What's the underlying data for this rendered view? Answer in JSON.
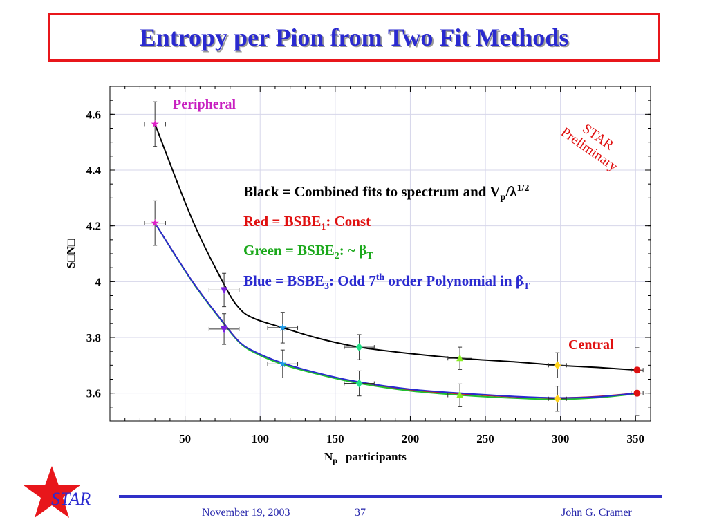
{
  "slide": {
    "title": "Entropy per Pion from Two Fit Methods",
    "title_color": "#2a2ad0",
    "border_color": "#e8161b"
  },
  "chart_data": {
    "type": "scatter",
    "xlabel_main": "N",
    "xlabel_sub": "p",
    "xlabel_rest": "participants",
    "ylabel": "S□N□",
    "xlim": [
      0,
      360
    ],
    "ylim": [
      3.5,
      4.7
    ],
    "x_ticks": [
      50,
      100,
      150,
      200,
      250,
      300,
      350
    ],
    "y_ticks": [
      3.6,
      3.8,
      4,
      4.2,
      4.4,
      4.6
    ],
    "y_tick_labels": [
      "3.6",
      "3.8",
      "4",
      "4.2",
      "4.4",
      "4.6"
    ],
    "grid": true,
    "points_upper": [
      {
        "x": 30,
        "y": 4.565,
        "xerr": 7,
        "yerr": 0.08,
        "marker": "star",
        "color": "#e020c8"
      },
      {
        "x": 76,
        "y": 3.97,
        "xerr": 10,
        "yerr": 0.06,
        "marker": "triangle-down",
        "color": "#7a22e0"
      },
      {
        "x": 115,
        "y": 3.835,
        "xerr": 10,
        "yerr": 0.055,
        "marker": "star",
        "color": "#1e9be8"
      },
      {
        "x": 166,
        "y": 3.765,
        "xerr": 10,
        "yerr": 0.045,
        "marker": "diamond",
        "color": "#22e088"
      },
      {
        "x": 233,
        "y": 3.725,
        "xerr": 8,
        "yerr": 0.04,
        "marker": "triangle-up",
        "color": "#88ee22"
      },
      {
        "x": 298,
        "y": 3.7,
        "xerr": 6,
        "yerr": 0.045,
        "marker": "diamond",
        "color": "#ffd21a"
      },
      {
        "x": 351,
        "y": 3.683,
        "xerr": 4,
        "yerr": 0.08,
        "marker": "circle",
        "color": "#e01010"
      }
    ],
    "points_lower": [
      {
        "x": 30,
        "y": 4.21,
        "xerr": 7,
        "yerr": 0.08,
        "marker": "star",
        "color": "#e020c8"
      },
      {
        "x": 76,
        "y": 3.83,
        "xerr": 10,
        "yerr": 0.055,
        "marker": "triangle-down",
        "color": "#7a22e0"
      },
      {
        "x": 115,
        "y": 3.705,
        "xerr": 10,
        "yerr": 0.05,
        "marker": "star",
        "color": "#1e9be8"
      },
      {
        "x": 166,
        "y": 3.635,
        "xerr": 10,
        "yerr": 0.045,
        "marker": "diamond",
        "color": "#22e088"
      },
      {
        "x": 233,
        "y": 3.593,
        "xerr": 8,
        "yerr": 0.04,
        "marker": "triangle-up",
        "color": "#88ee22"
      },
      {
        "x": 298,
        "y": 3.58,
        "xerr": 6,
        "yerr": 0.045,
        "marker": "diamond",
        "color": "#ffd21a"
      },
      {
        "x": 351,
        "y": 3.6,
        "xerr": 4,
        "yerr": 0.08,
        "marker": "circle",
        "color": "#e01010"
      }
    ],
    "curves": [
      {
        "color": "#000000",
        "x": [
          30,
          55,
          76,
          86,
          96,
          115,
          140,
          166,
          200,
          233,
          270,
          298,
          325,
          351
        ],
        "y": [
          4.565,
          4.22,
          3.99,
          3.905,
          3.868,
          3.835,
          3.795,
          3.765,
          3.742,
          3.725,
          3.712,
          3.7,
          3.692,
          3.683
        ]
      },
      {
        "color": "#e01010",
        "x": [
          30,
          55,
          76,
          86,
          96,
          115,
          140,
          166,
          200,
          233,
          270,
          298,
          325,
          351
        ],
        "y": [
          4.21,
          4.0,
          3.85,
          3.785,
          3.748,
          3.705,
          3.668,
          3.638,
          3.612,
          3.598,
          3.587,
          3.583,
          3.588,
          3.6
        ]
      },
      {
        "color": "#20c030",
        "x": [
          30,
          55,
          76,
          86,
          96,
          115,
          140,
          166,
          200,
          233,
          270,
          298,
          325,
          351
        ],
        "y": [
          4.21,
          3.998,
          3.848,
          3.783,
          3.746,
          3.703,
          3.666,
          3.635,
          3.608,
          3.593,
          3.582,
          3.578,
          3.584,
          3.598
        ]
      },
      {
        "color": "#2a2ad0",
        "x": [
          30,
          55,
          76,
          86,
          96,
          115,
          140,
          166,
          200,
          233,
          270,
          298,
          325,
          351
        ],
        "y": [
          4.21,
          4.0,
          3.85,
          3.785,
          3.75,
          3.708,
          3.67,
          3.64,
          3.614,
          3.6,
          3.588,
          3.583,
          3.587,
          3.6
        ]
      }
    ],
    "annotations": {
      "peripheral": "Peripheral",
      "central": "Central",
      "star_prelim_1": "STAR",
      "star_prelim_2": "Preliminary"
    },
    "legend": {
      "black_main": "Black = Combined fits to spectrum and V",
      "black_sub": "p",
      "black_slash": "/λ",
      "black_sup": "1/2",
      "red_main": "Red = BSBE",
      "red_sub": "1",
      "red_rest": ":  Const",
      "green_main": "Green = BSBE",
      "green_sub": "2",
      "green_rest": ": ~ β",
      "green_sub2": "T",
      "blue_main": "Blue = BSBE",
      "blue_sub": "3",
      "blue_mid": ": Odd 7",
      "blue_sup": "th",
      "blue_rest": " order Polynomial in β",
      "blue_sub2": "T",
      "colors": {
        "black": "#000000",
        "red": "#e01010",
        "green": "#1aa81a",
        "blue": "#2a2ad0"
      }
    }
  },
  "footer": {
    "date": "November 19, 2003",
    "page": "37",
    "author": "John G. Cramer",
    "logo_text": "STAR"
  }
}
